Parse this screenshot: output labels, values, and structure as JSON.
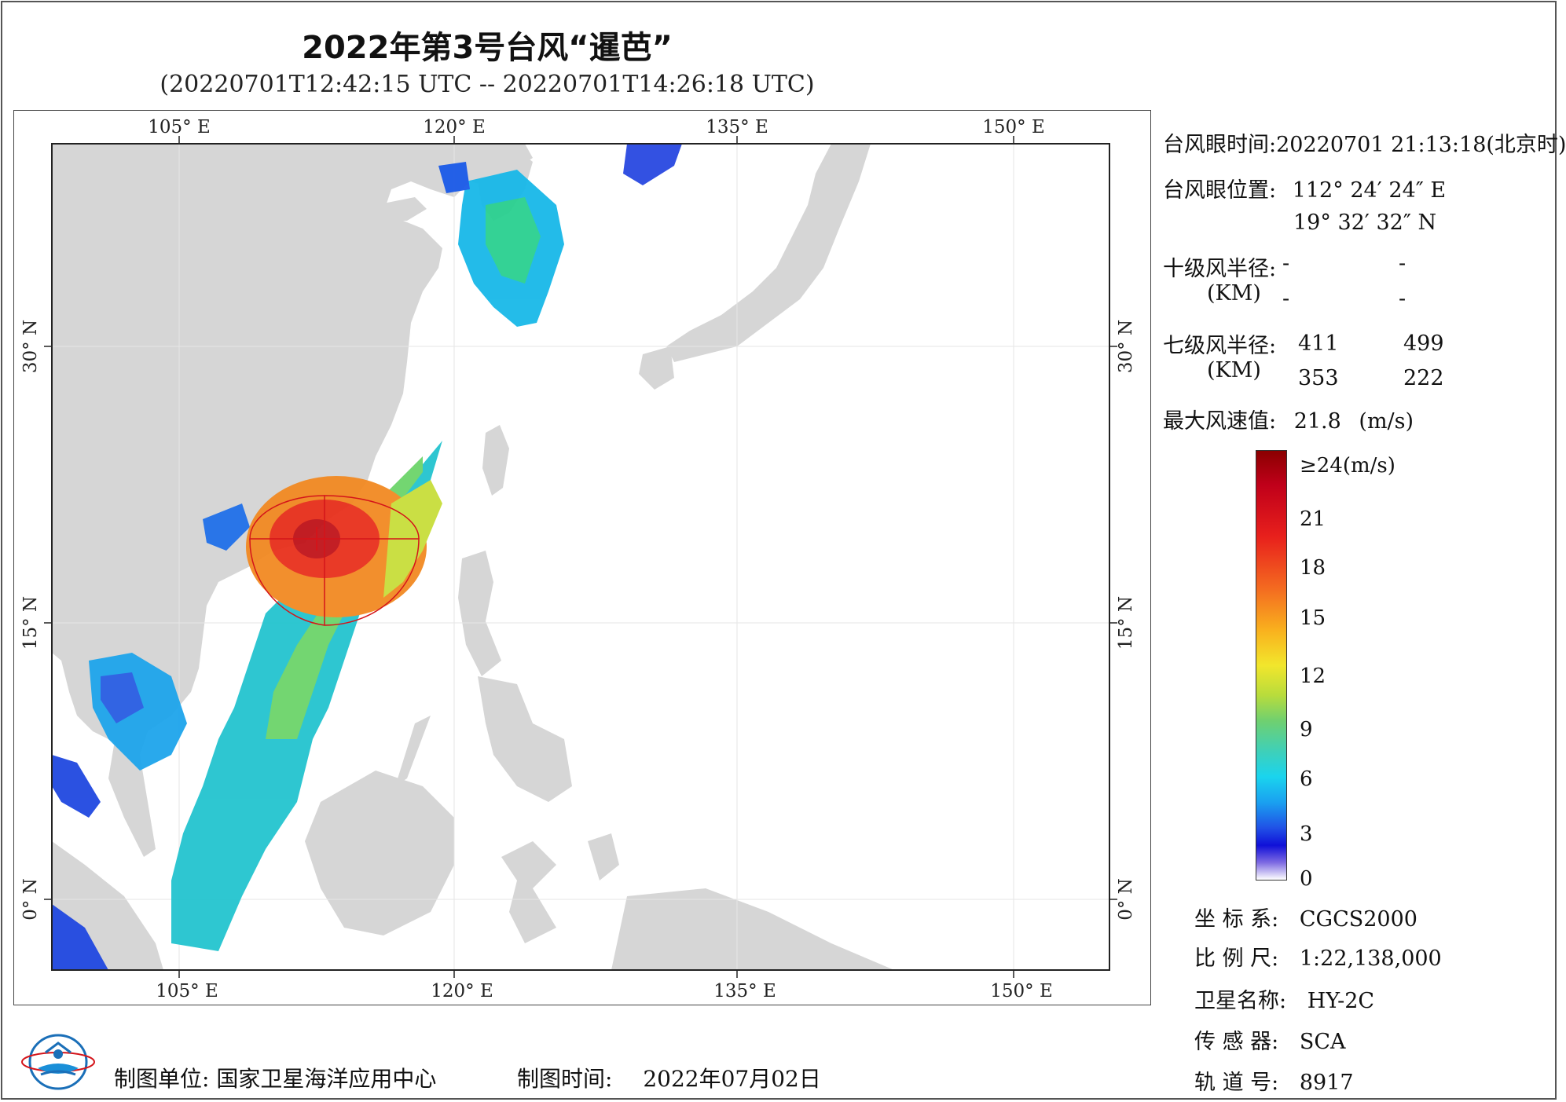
{
  "title": "2022年第3号台风“暹芭”",
  "subtitle": "(20220701T12:42:15 UTC -- 20220701T14:26:18 UTC)",
  "map": {
    "top_lon_ticks": [
      "105° E",
      "120° E",
      "135° E",
      "150° E"
    ],
    "bottom_lon_ticks": [
      "105° E",
      "120° E",
      "135° E",
      "150° E"
    ],
    "lat_ticks": [
      "30° N",
      "15° N",
      "0° N"
    ],
    "land_color": "#d6d6d6",
    "ocean_color": "#ffffff",
    "typhoon_marker_color": "#d4141a"
  },
  "info": {
    "eye_time_label": "台风眼时间:",
    "eye_time_value": "20220701 21:13:18(北京时)",
    "eye_pos_label": "台风眼位置:",
    "eye_lon": "112° 24′ 24″ E",
    "eye_lat": "19° 32′ 32″ N",
    "r10_label": "十级风半径:",
    "r10_unit": "(KM)",
    "r10_values": [
      "-",
      "-",
      "-",
      "-"
    ],
    "r7_label": "七级风半径:",
    "r7_unit": "(KM)",
    "r7_values": [
      "411",
      "499",
      "353",
      "222"
    ],
    "max_wind_label": "最大风速值:",
    "max_wind_value": "21.8",
    "max_wind_unit": "(m/s)"
  },
  "legend": {
    "top_label": "≥24(m/s)",
    "labels": [
      "21",
      "18",
      "15",
      "12",
      "9",
      "6",
      "3",
      "0"
    ]
  },
  "meta": {
    "crs_label": "坐 标 系:",
    "crs_value": "CGCS2000",
    "scale_label": "比 例 尺:",
    "scale_value": "1:22,138,000",
    "satellite_label": "卫星名称:",
    "satellite_value": "HY-2C",
    "sensor_label": "传 感 器:",
    "sensor_value": "SCA",
    "orbit_label": "轨 道 号:",
    "orbit_value": "8917"
  },
  "footer": {
    "producer_label": "制图单位:",
    "producer_value": "国家卫星海洋应用中心",
    "date_label": "制图时间:",
    "date_value": "2022年07月02日"
  }
}
